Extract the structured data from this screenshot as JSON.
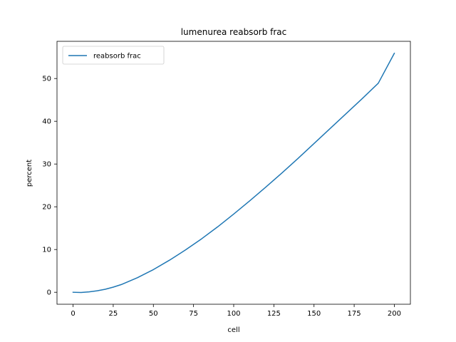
{
  "chart_data": {
    "type": "line",
    "title": "lumenurea reabsorb frac",
    "xlabel": "cell",
    "ylabel": "percent",
    "xlim": [
      -10,
      210
    ],
    "ylim": [
      -2.8,
      58.7
    ],
    "xticks": [
      0,
      25,
      50,
      75,
      100,
      125,
      150,
      175,
      200
    ],
    "yticks": [
      0,
      10,
      20,
      30,
      40,
      50
    ],
    "grid": false,
    "legend_position": "top-left",
    "series": [
      {
        "name": "reabsorb frac",
        "color": "#1f77b4",
        "x": [
          0,
          5,
          10,
          15,
          20,
          25,
          30,
          40,
          50,
          60,
          70,
          80,
          90,
          100,
          110,
          120,
          130,
          140,
          150,
          160,
          170,
          180,
          190,
          200
        ],
        "y": [
          0.0,
          -0.05,
          0.1,
          0.35,
          0.7,
          1.2,
          1.8,
          3.4,
          5.3,
          7.5,
          9.9,
          12.5,
          15.3,
          18.3,
          21.4,
          24.6,
          27.9,
          31.3,
          34.8,
          38.3,
          41.8,
          45.3,
          48.9,
          55.9
        ]
      }
    ]
  }
}
